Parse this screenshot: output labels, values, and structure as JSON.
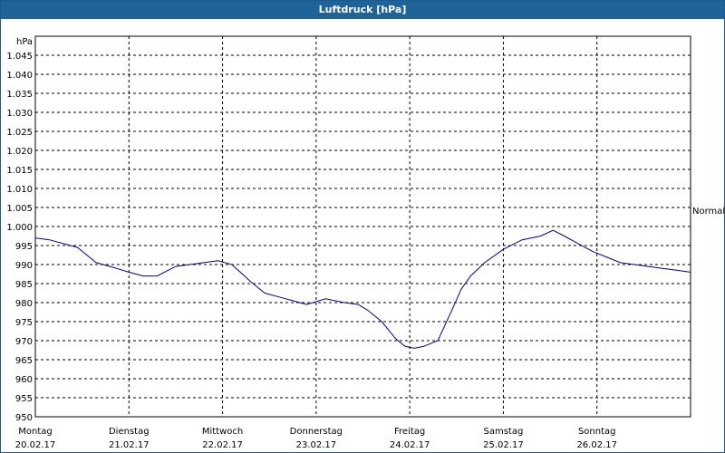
{
  "window": {
    "title": "Luftdruck [hPa]"
  },
  "chart_data": {
    "type": "line",
    "title": "Luftdruck [hPa]",
    "ylabel": "hPa",
    "ylim": [
      950,
      1050
    ],
    "yticks": [
      950,
      955,
      960,
      965,
      970,
      975,
      980,
      985,
      990,
      995,
      1000,
      1005,
      1010,
      1015,
      1020,
      1025,
      1030,
      1035,
      1040,
      1045
    ],
    "ytick_labels": [
      "950",
      "955",
      "960",
      "965",
      "970",
      "975",
      "980",
      "985",
      "990",
      "995",
      "1.000",
      "1.005",
      "1.010",
      "1.015",
      "1.020",
      "1.025",
      "1.030",
      "1.035",
      "1.040",
      "1.045"
    ],
    "xlim": [
      0,
      7
    ],
    "days": [
      {
        "weekday": "Montag",
        "date": "20.02.17"
      },
      {
        "weekday": "Dienstag",
        "date": "21.02.17"
      },
      {
        "weekday": "Mittwoch",
        "date": "22.02.17"
      },
      {
        "weekday": "Donnerstag",
        "date": "23.02.17"
      },
      {
        "weekday": "Freitag",
        "date": "24.02.17"
      },
      {
        "weekday": "Samstag",
        "date": "25.02.17"
      },
      {
        "weekday": "Sonntag",
        "date": "26.02.17"
      }
    ],
    "reference_line": {
      "label": "Normal",
      "value": 1003.5
    },
    "grid": true,
    "line_color": "#00008b",
    "series": [
      {
        "x": [
          0,
          0.15,
          0.3,
          0.45,
          0.55,
          0.65,
          0.8,
          1.0,
          1.15,
          1.3,
          1.5,
          1.65,
          1.8,
          1.95,
          2.1,
          2.3,
          2.45,
          2.6,
          2.75,
          2.9,
          3.1,
          3.3,
          3.45,
          3.55,
          3.7,
          3.85,
          3.95,
          4.05,
          4.15,
          4.3,
          4.45,
          4.55,
          4.65,
          4.8,
          5.0,
          5.2,
          5.4,
          5.53,
          5.65,
          5.8,
          5.95,
          6.1,
          6.25,
          6.4,
          6.55,
          6.7,
          6.85,
          7.0
        ],
        "y": [
          997,
          996.5,
          995.5,
          994.5,
          992.5,
          990.5,
          989.5,
          988,
          987,
          987,
          989.5,
          990,
          990.5,
          991,
          990,
          985.5,
          982.5,
          981.5,
          980.5,
          979.5,
          981,
          980,
          979.5,
          978,
          975,
          970.5,
          968.5,
          968,
          968.5,
          970,
          978,
          983.5,
          987,
          990.5,
          994,
          996.5,
          997.5,
          999,
          997.5,
          995.5,
          993.5,
          992,
          990.5,
          990,
          989.5,
          989,
          988.5,
          988
        ]
      }
    ]
  }
}
